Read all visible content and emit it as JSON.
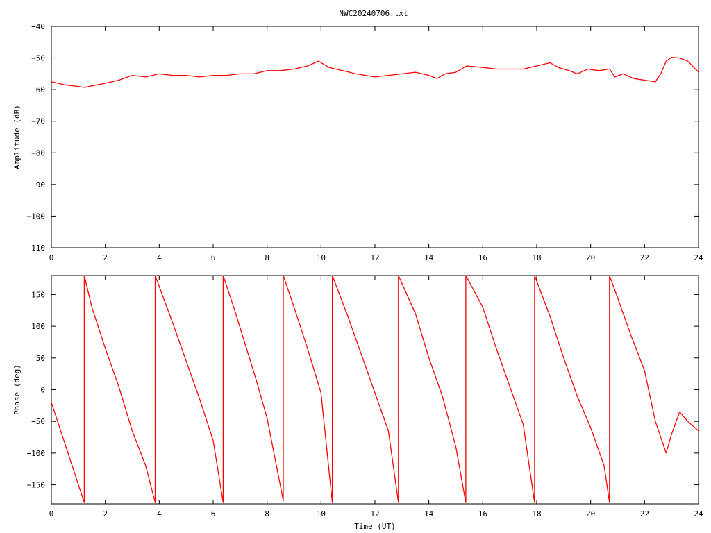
{
  "chart_data": [
    {
      "type": "line",
      "title": "NWC20240706.txt",
      "xlabel": "",
      "ylabel": "Amplitude (dB)",
      "xlim": [
        0,
        24
      ],
      "ylim": [
        -110,
        -40
      ],
      "xticks": [
        0,
        2,
        4,
        6,
        8,
        10,
        12,
        14,
        16,
        18,
        20,
        22,
        24
      ],
      "yticks": [
        -110,
        -100,
        -90,
        -80,
        -70,
        -60,
        -50,
        -40
      ],
      "grid": false,
      "series": [
        {
          "color": "#ff0000",
          "x": [
            0,
            0.5,
            1.0,
            1.25,
            1.5,
            2.0,
            2.5,
            3.0,
            3.5,
            4.0,
            4.5,
            5.0,
            5.5,
            6.0,
            6.5,
            7.0,
            7.5,
            8.0,
            8.5,
            9.0,
            9.5,
            9.9,
            10.3,
            10.8,
            11.3,
            12.0,
            12.5,
            13.0,
            13.5,
            14.0,
            14.3,
            14.6,
            15.0,
            15.4,
            16.0,
            16.5,
            17.0,
            17.5,
            18.0,
            18.5,
            18.8,
            19.2,
            19.5,
            19.9,
            20.3,
            20.7,
            20.9,
            21.2,
            21.6,
            22.0,
            22.4,
            22.6,
            22.8,
            23.0,
            23.3,
            23.6,
            24.0
          ],
          "y": [
            -57.5,
            -58.5,
            -59.0,
            -59.3,
            -58.8,
            -58.0,
            -57.0,
            -55.5,
            -56.0,
            -55.0,
            -55.5,
            -55.5,
            -56.0,
            -55.5,
            -55.5,
            -55.0,
            -55.0,
            -54.0,
            -54.0,
            -53.5,
            -52.5,
            -51.0,
            -53.0,
            -54.0,
            -55.0,
            -56.0,
            -55.5,
            -55.0,
            -54.5,
            -55.5,
            -56.5,
            -55.0,
            -54.5,
            -52.5,
            -53.0,
            -53.5,
            -53.5,
            -53.5,
            -52.5,
            -51.5,
            -53.0,
            -54.0,
            -55.0,
            -53.5,
            -54.0,
            -53.5,
            -56.0,
            -55.0,
            -56.5,
            -57.0,
            -57.5,
            -55.0,
            -51.0,
            -49.8,
            -50.0,
            -51.0,
            -54.5
          ]
        }
      ]
    },
    {
      "type": "line",
      "title": "",
      "xlabel": "Time (UT)",
      "ylabel": "Phase (deg)",
      "xlim": [
        0,
        24
      ],
      "ylim": [
        -180,
        180
      ],
      "xticks": [
        0,
        2,
        4,
        6,
        8,
        10,
        12,
        14,
        16,
        18,
        20,
        22,
        24
      ],
      "yticks": [
        -150,
        -100,
        -50,
        0,
        50,
        100,
        150
      ],
      "grid": false,
      "series": [
        {
          "color": "#ff0000",
          "x": [
            0,
            1.22,
            1.22,
            1.5,
            2.0,
            2.5,
            3.0,
            3.5,
            3.85,
            3.85,
            4.5,
            5.0,
            5.5,
            6.0,
            6.37,
            6.37,
            6.8,
            7.2,
            7.6,
            8.0,
            8.6,
            8.6,
            9.0,
            9.5,
            10.0,
            10.42,
            10.42,
            11.0,
            11.5,
            12.0,
            12.5,
            12.87,
            12.87,
            13.5,
            14.0,
            14.5,
            15.0,
            15.37,
            15.37,
            16.0,
            16.5,
            17.0,
            17.5,
            17.92,
            17.92,
            18.5,
            19.0,
            19.5,
            20.0,
            20.5,
            20.7,
            20.7,
            21.0,
            21.5,
            22.0,
            22.4,
            22.8,
            23.0,
            23.3,
            23.6,
            24.0
          ],
          "y": [
            -20,
            -178,
            180,
            130,
            65,
            5,
            -65,
            -120,
            -178,
            180,
            105,
            45,
            -15,
            -80,
            -178,
            180,
            125,
            70,
            15,
            -45,
            -175,
            180,
            130,
            65,
            -5,
            -178,
            180,
            115,
            55,
            -5,
            -65,
            -178,
            180,
            120,
            50,
            -10,
            -90,
            -178,
            180,
            130,
            65,
            5,
            -55,
            -178,
            180,
            115,
            50,
            -10,
            -60,
            -120,
            -178,
            180,
            145,
            85,
            30,
            -50,
            -100,
            -70,
            -35,
            -50,
            -65
          ]
        }
      ]
    }
  ]
}
